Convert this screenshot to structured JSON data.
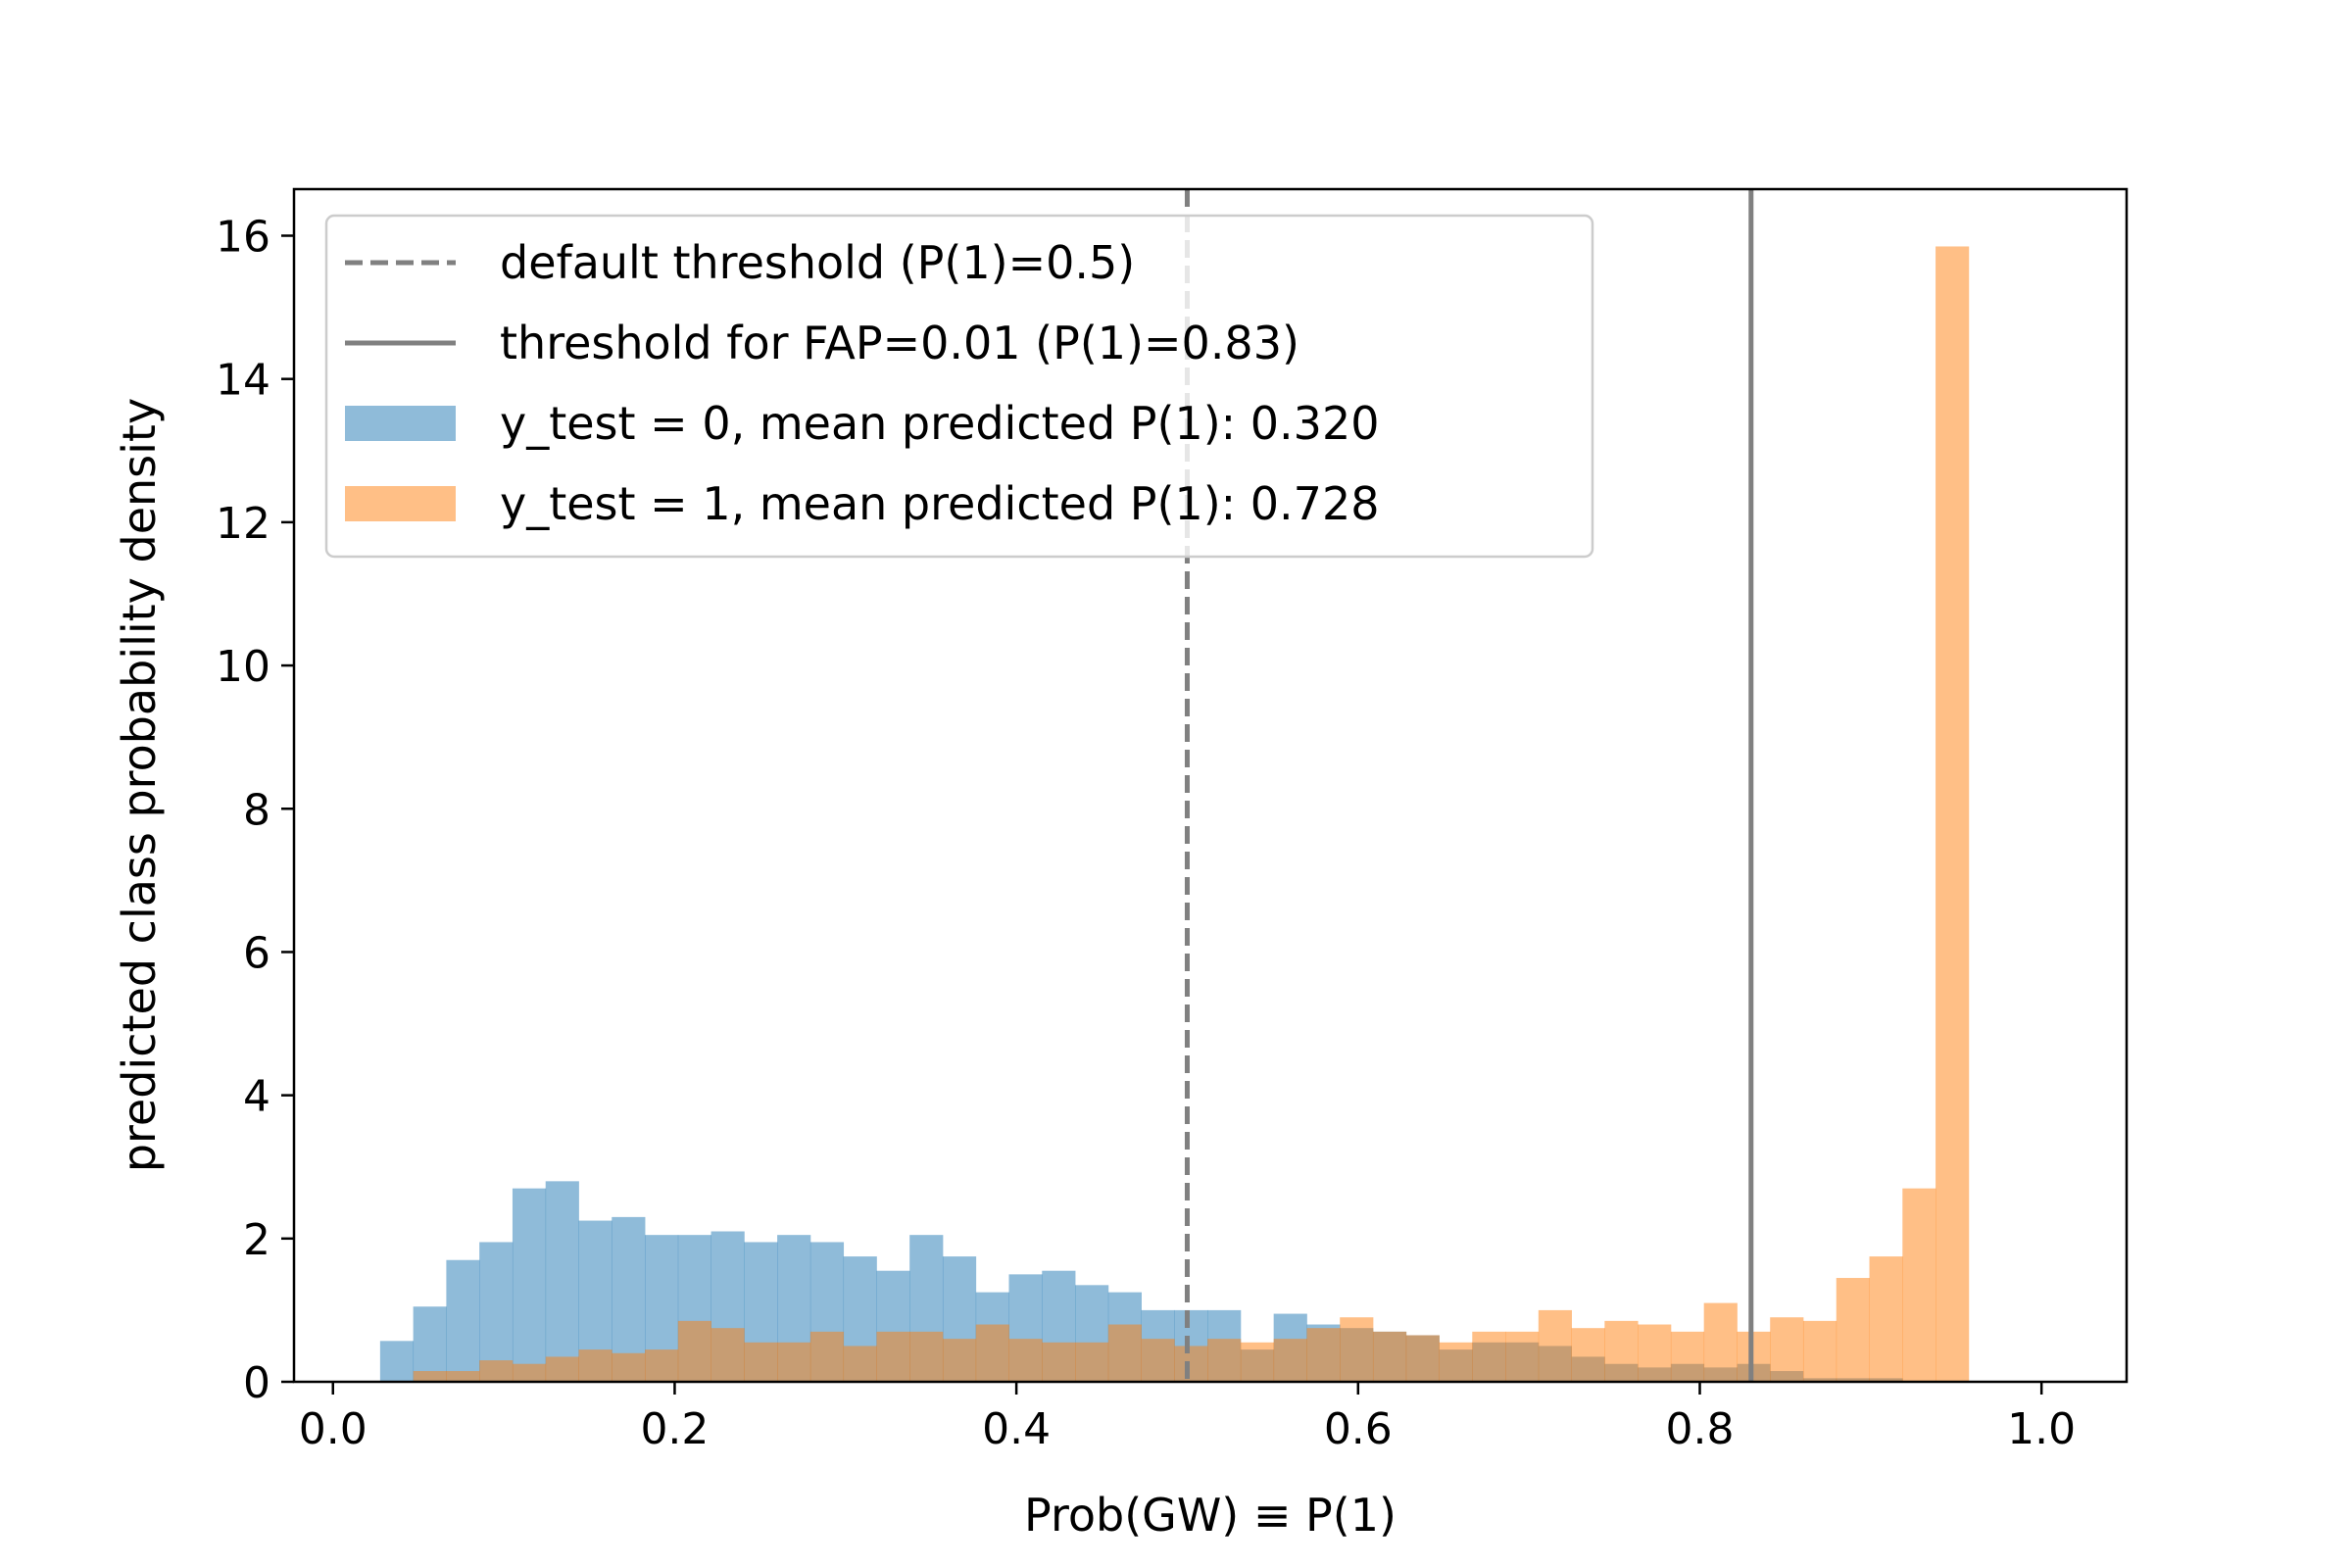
{
  "chart_data": {
    "type": "bar",
    "xlabel": "Prob(GW) ≡ P(1)",
    "ylabel": "predicted class probability density",
    "xlim": [
      -0.0228,
      1.0498
    ],
    "ylim": [
      0,
      16.65
    ],
    "xticks": [
      "0.0",
      "0.2",
      "0.4",
      "0.6",
      "0.8",
      "1.0"
    ],
    "yticks": [
      "0",
      "2",
      "4",
      "6",
      "8",
      "10",
      "12",
      "14",
      "16"
    ],
    "bin_width": 0.01937,
    "grid": false,
    "legend_position": "upper left",
    "vlines": [
      {
        "name": "default threshold (P(1)=0.5)",
        "x": 0.5,
        "style": "dashed",
        "color": "#808080"
      },
      {
        "name": "threshold for FAP=0.01 (P(1)=0.83)",
        "x": 0.83,
        "style": "solid",
        "color": "#808080"
      }
    ],
    "series": [
      {
        "name": "y_test = 0, mean predicted P(1): 0.320",
        "color": "#1f77b4",
        "alpha": 0.5,
        "x_start": 0.0276,
        "values": [
          0.57,
          1.05,
          1.7,
          1.95,
          2.7,
          2.8,
          2.25,
          2.3,
          2.05,
          2.05,
          2.1,
          1.95,
          2.05,
          1.95,
          1.75,
          1.55,
          2.05,
          1.75,
          1.25,
          1.5,
          1.55,
          1.35,
          1.25,
          1.0,
          1.0,
          1.0,
          0.45,
          0.95,
          0.8,
          0.75,
          0.7,
          0.65,
          0.45,
          0.55,
          0.55,
          0.5,
          0.35,
          0.25,
          0.2,
          0.25,
          0.2,
          0.25,
          0.15,
          0.05,
          0.05,
          0.05,
          0.0
        ]
      },
      {
        "name": "y_test = 1, mean predicted P(1): 0.728",
        "color": "#ff7f0e",
        "alpha": 0.5,
        "x_start": 0.0276,
        "values": [
          0.0,
          0.15,
          0.15,
          0.3,
          0.25,
          0.35,
          0.45,
          0.4,
          0.45,
          0.85,
          0.75,
          0.55,
          0.55,
          0.7,
          0.5,
          0.7,
          0.7,
          0.6,
          0.8,
          0.6,
          0.55,
          0.55,
          0.8,
          0.6,
          0.5,
          0.6,
          0.55,
          0.6,
          0.75,
          0.9,
          0.7,
          0.65,
          0.55,
          0.7,
          0.7,
          1.0,
          0.75,
          0.85,
          0.8,
          0.7,
          1.1,
          0.7,
          0.9,
          0.85,
          1.45,
          1.75,
          2.7,
          15.85
        ]
      }
    ]
  }
}
